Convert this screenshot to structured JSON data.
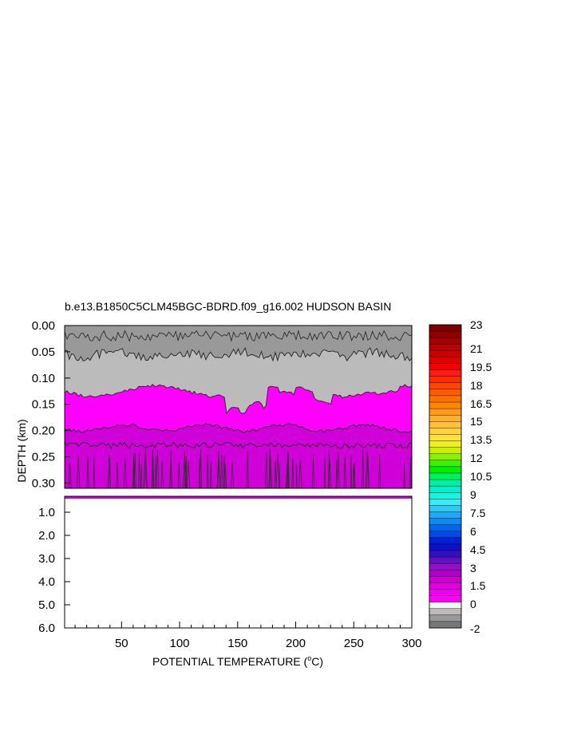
{
  "chart_data": {
    "type": "heatmap",
    "title": "b.e13.B1850C5CLM45BGC-BDRD.f09_g16.002 HUDSON BASIN",
    "xlabel": "POTENTIAL TEMPERATURE (",
    "xlabel_deg": "o",
    "xlabel_tail": "C)",
    "ylabel": "DEPTH (km)",
    "xlim": [
      1,
      300
    ],
    "x_ticks": [
      "50",
      "100",
      "150",
      "200",
      "250",
      "300"
    ],
    "x_tick_values": [
      50,
      100,
      150,
      200,
      250,
      300
    ],
    "upper_panel": {
      "ylim": [
        0.0,
        0.31
      ],
      "y_ticks": [
        "0.00",
        "0.05",
        "0.10",
        "0.15",
        "0.20",
        "0.25",
        "0.30"
      ],
      "y_tick_values": [
        0.0,
        0.05,
        0.1,
        0.15,
        0.2,
        0.25,
        0.3
      ]
    },
    "lower_panel": {
      "ylim": [
        0.31,
        6.0
      ],
      "y_ticks": [
        "1.0",
        "2.0",
        "3.0",
        "4.0",
        "5.0",
        "6.0"
      ],
      "y_tick_values": [
        1.0,
        2.0,
        3.0,
        4.0,
        5.0,
        6.0
      ]
    },
    "field_layers": [
      {
        "name": "dark-gray",
        "value": -1.5,
        "depth_range_km": [
          0.0,
          0.06
        ]
      },
      {
        "name": "light-gray",
        "value": -0.5,
        "depth_range_km": [
          0.06,
          0.14
        ]
      },
      {
        "name": "magenta",
        "value": 0.25,
        "depth_range_km": [
          0.14,
          0.2
        ]
      },
      {
        "name": "deep-magenta",
        "value": 0.75,
        "depth_range_km": [
          0.2,
          0.31
        ]
      }
    ],
    "colorbar": {
      "labels": [
        "23",
        "21",
        "19.5",
        "18",
        "16.5",
        "15",
        "13.5",
        "12",
        "10.5",
        "9",
        "7.5",
        "6",
        "4.5",
        "3",
        "1.5",
        "0",
        "-2"
      ],
      "colors": [
        "#7a0000",
        "#8e0000",
        "#a30000",
        "#b80000",
        "#cc0000",
        "#e00000",
        "#f50000",
        "#ff1a1a",
        "#ff2e00",
        "#ff4500",
        "#ff5a00",
        "#ff7000",
        "#ff8500",
        "#ff9a1a",
        "#ffaf33",
        "#ffc040",
        "#ffd040",
        "#ffe040",
        "#f0f020",
        "#c8f000",
        "#8cf000",
        "#3cf000",
        "#00f000",
        "#00f05a",
        "#00f0a0",
        "#00f0c8",
        "#20f0e0",
        "#40e8f0",
        "#30c8f0",
        "#20a8f0",
        "#1088f0",
        "#0068f0",
        "#0048e8",
        "#0020d8",
        "#1010c8",
        "#3010c0",
        "#6010c0",
        "#9010c8",
        "#b000c8",
        "#c800d0",
        "#e000e0",
        "#f000f0",
        "#ff00ff",
        "#f4f4f4",
        "#bbbbbb",
        "#999999",
        "#777777"
      ]
    }
  }
}
